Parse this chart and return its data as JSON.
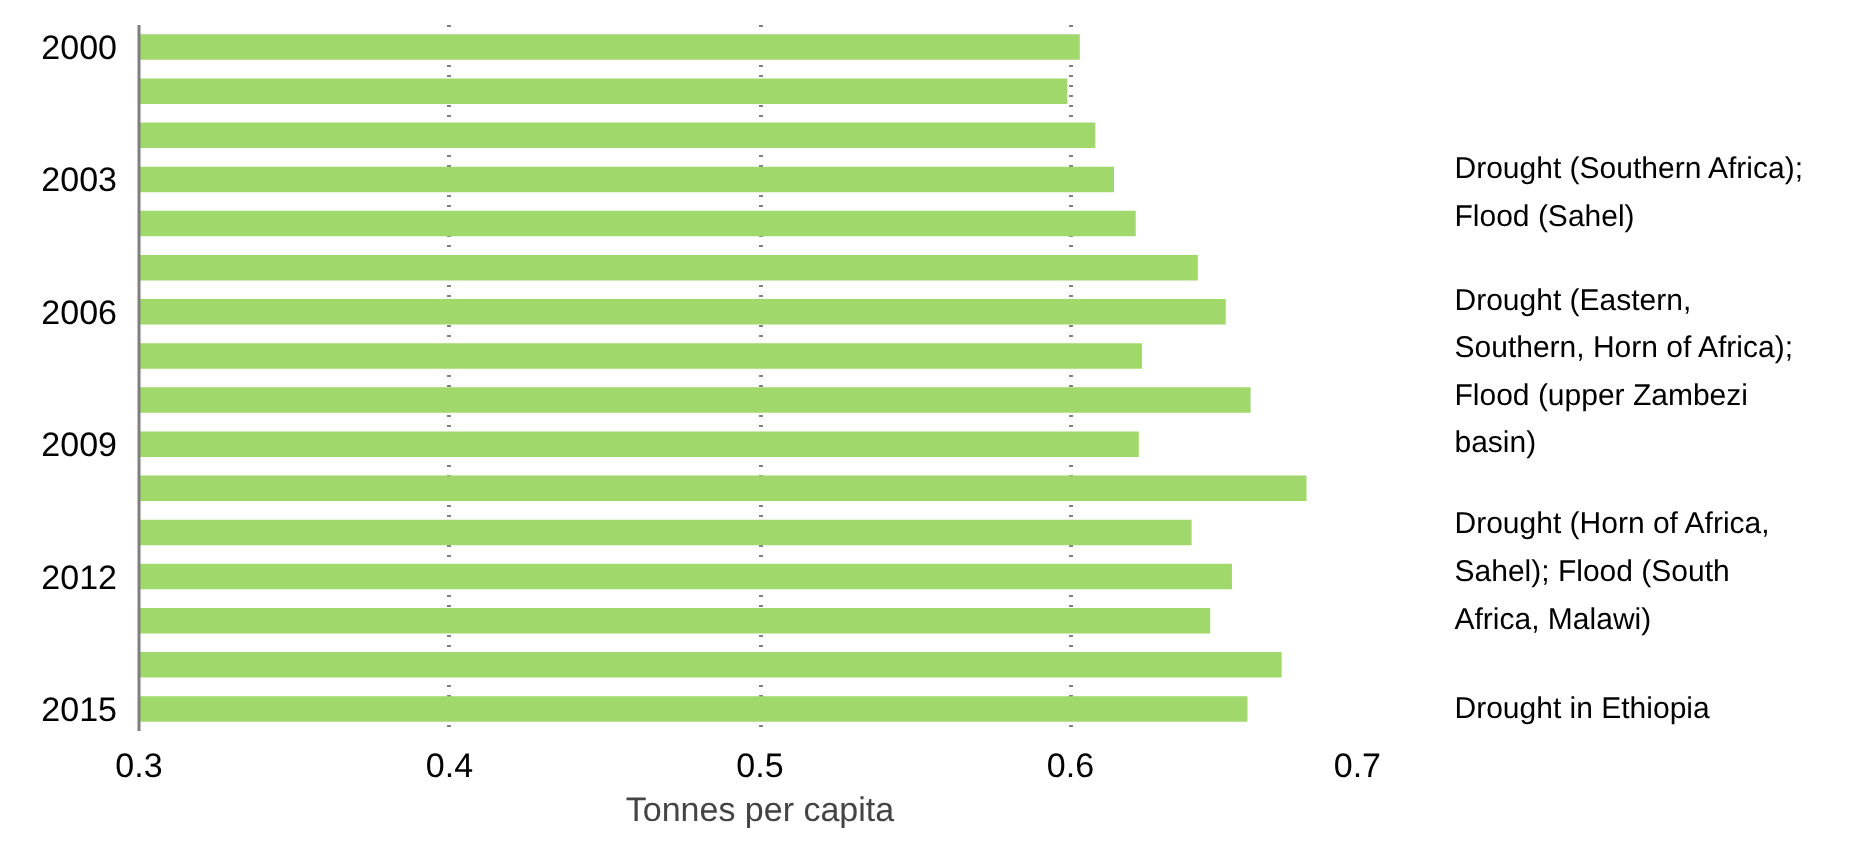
{
  "chart_data": {
    "type": "bar",
    "orientation": "horizontal",
    "xlabel": "Tonnes per capita",
    "categories": [
      "2000",
      null,
      null,
      "2003",
      null,
      null,
      "2006",
      null,
      null,
      "2009",
      null,
      null,
      "2012",
      null,
      null,
      "2015"
    ],
    "values": [
      0.603,
      0.599,
      0.608,
      0.614,
      0.621,
      0.641,
      0.65,
      0.623,
      0.658,
      0.622,
      0.676,
      0.639,
      0.652,
      0.645,
      0.668,
      0.657
    ],
    "color": "#a0d86c",
    "xlim": [
      0.3,
      0.7
    ],
    "xticks": [
      0.3,
      0.4,
      0.5,
      0.6,
      0.7
    ],
    "grid": "x",
    "annotations": [
      "Drought (Southern Africa); Flood (Sahel)",
      "Drought (Eastern, Southern, Horn of Africa); Flood (upper Zambezi basin)",
      "Drought (Horn of Africa, Sahel); Flood (South Africa, Malawi)",
      "Drought in Ethiopia"
    ]
  }
}
